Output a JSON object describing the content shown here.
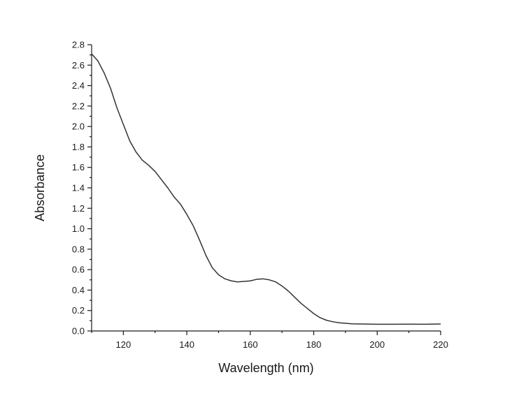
{
  "chart_data": {
    "type": "line",
    "title": "",
    "xlabel": "Wavelength (nm)",
    "ylabel": "Absorbance",
    "xlim": [
      110,
      220
    ],
    "ylim": [
      0.0,
      2.8
    ],
    "x_ticks": [
      120,
      140,
      160,
      180,
      200,
      220
    ],
    "y_ticks": [
      0.0,
      0.2,
      0.4,
      0.6,
      0.8,
      1.0,
      1.2,
      1.4,
      1.6,
      1.8,
      2.0,
      2.2,
      2.4,
      2.6,
      2.8
    ],
    "x_tick_labels": [
      "120",
      "140",
      "160",
      "180",
      "200",
      "220"
    ],
    "y_tick_labels": [
      "0.0",
      "0.2",
      "0.4",
      "0.6",
      "0.8",
      "1.0",
      "1.2",
      "1.4",
      "1.6",
      "1.8",
      "2.0",
      "2.2",
      "2.4",
      "2.6",
      "2.8"
    ],
    "grid": false,
    "legend": false,
    "line_color": "#333333",
    "series": [
      {
        "x": [
          110,
          112,
          114,
          116,
          118,
          120,
          122,
          124,
          126,
          128,
          130,
          132,
          134,
          136,
          138,
          140,
          142,
          144,
          146,
          148,
          150,
          152,
          154,
          156,
          158,
          160,
          162,
          164,
          166,
          168,
          170,
          172,
          174,
          176,
          178,
          180,
          182,
          184,
          186,
          188,
          190,
          192,
          195,
          200,
          205,
          210,
          215,
          220
        ],
        "y": [
          2.71,
          2.64,
          2.52,
          2.37,
          2.18,
          2.02,
          1.86,
          1.75,
          1.67,
          1.62,
          1.56,
          1.48,
          1.4,
          1.31,
          1.24,
          1.14,
          1.03,
          0.89,
          0.74,
          0.62,
          0.55,
          0.51,
          0.49,
          0.48,
          0.485,
          0.49,
          0.505,
          0.51,
          0.5,
          0.48,
          0.44,
          0.39,
          0.33,
          0.27,
          0.22,
          0.17,
          0.13,
          0.105,
          0.09,
          0.08,
          0.075,
          0.07,
          0.068,
          0.066,
          0.066,
          0.067,
          0.066,
          0.068
        ]
      }
    ]
  }
}
